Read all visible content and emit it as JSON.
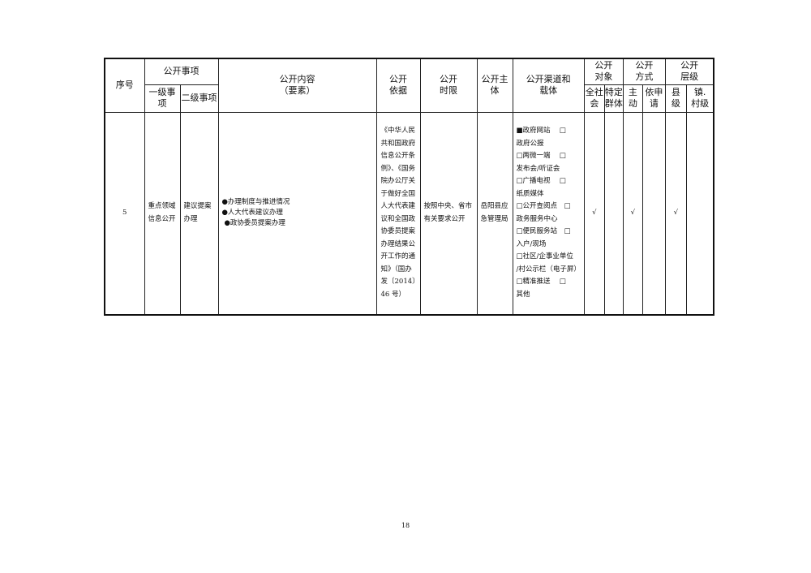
{
  "header": {
    "seq": "序号",
    "item": "公开事项",
    "item_l1": "一级事项",
    "item_l2": "二级事项",
    "content": "公开内容\n（要素）",
    "basis": "公开\n依据",
    "time": "公开\n时限",
    "subject": "公开主\n体",
    "channel": "公开渠道和\n载体",
    "target": "公开\n对象",
    "target_all": "全社\n会",
    "target_spec": "特定\n群体",
    "mode": "公开\n方式",
    "mode_active": "主\n动",
    "mode_apply": "依申\n请",
    "level": "公开\n层级",
    "level_county": "县\n级",
    "level_town": "镇.\n村级"
  },
  "row": {
    "seq": "5",
    "l1": "重点领域信息公开",
    "l2": "建议提案办理",
    "content": [
      "●办理制度与推进情况",
      "●人大代表建议办理",
      "●政协委员提案办理"
    ],
    "basis": "《中华人民共和国政府信息公开条例》、《国务院办公厅关于做好全国人大代表建议和全国政协委员提案办理结果公开工作的通知》（国办发〔2014〕46 号）",
    "time": "按照中央、省市有关要求公开",
    "subject": "岳阳县应急管理局",
    "channel": [
      "■政府网站　 □",
      "政府公报",
      "□两微一端　 □",
      "发布会/听证会",
      "□广播电视　 □",
      "纸质媒体",
      "□公开查阅点　□",
      "政务服务中心",
      "□便民服务站　□",
      "入户/现场",
      "□社区/企事业单位",
      "/村公示栏（电子屏）",
      "□精准推送　 □",
      "其他"
    ],
    "target_all": "√",
    "target_spec": "",
    "mode_active": "√",
    "mode_apply": "",
    "level_county": "√",
    "level_town": ""
  },
  "page_number": "18"
}
